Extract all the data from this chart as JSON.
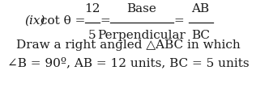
{
  "background_color": "#ffffff",
  "line1_prefix": "(ix)  cot θ =",
  "line1_frac_num": "12",
  "line1_frac_den": "5",
  "line1_base": "Base",
  "line1_perp": "Perpendicular",
  "line1_ab": "AB",
  "line1_bc": "BC",
  "line2": "Draw a right angled △ABC in which",
  "line3": "∠B = 90º, AB = 12 units, BC = 5 units",
  "font_size_main": 11,
  "text_color": "#1a1a1a"
}
